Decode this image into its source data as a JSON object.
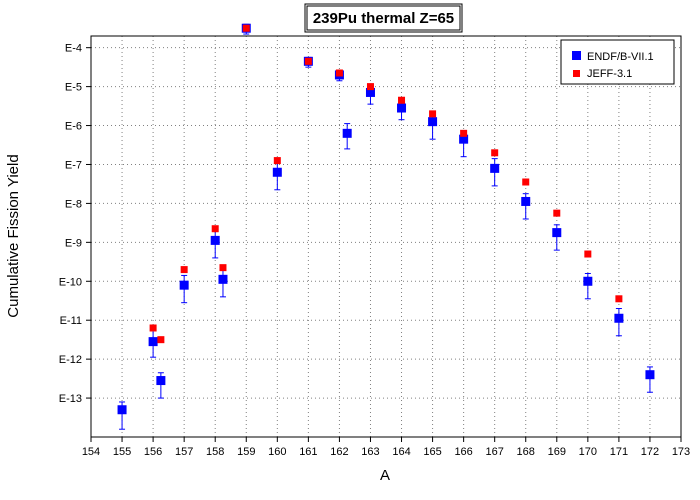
{
  "chart_data": {
    "type": "scatter",
    "title": "239Pu thermal Z=65",
    "xlabel": "A",
    "ylabel": "Cumulative Fission Yield",
    "x_ticks": [
      "154",
      "155",
      "156",
      "157",
      "158",
      "159",
      "160",
      "161",
      "162",
      "163",
      "164",
      "165",
      "166",
      "167",
      "168",
      "169",
      "170",
      "171",
      "172",
      "173"
    ],
    "xlim": [
      154,
      173
    ],
    "y_scale": "log",
    "ylim_log10": [
      -14,
      -3.7
    ],
    "y_ticks": [
      {
        "label": "E-4",
        "exp": -4
      },
      {
        "label": "E-5",
        "exp": -5
      },
      {
        "label": "E-6",
        "exp": -6
      },
      {
        "label": "E-7",
        "exp": -7
      },
      {
        "label": "E-8",
        "exp": -8
      },
      {
        "label": "E-9",
        "exp": -9
      },
      {
        "label": "E-10",
        "exp": -10
      },
      {
        "label": "E-11",
        "exp": -11
      },
      {
        "label": "E-12",
        "exp": -12
      },
      {
        "label": "E-13",
        "exp": -13
      }
    ],
    "grid": true,
    "legend_position": "top-right",
    "series": [
      {
        "name": "ENDF/B-VII.1",
        "color": "#0000ff",
        "marker": "square-large",
        "points": [
          {
            "x": 155,
            "log10y": -13.3,
            "err_lo": 0.5,
            "err_hi": 0.2
          },
          {
            "x": 156,
            "log10y": -11.55,
            "err_lo": 0.4,
            "err_hi": 0.3
          },
          {
            "x": 156.25,
            "log10y": -12.55,
            "err_lo": 0.45,
            "err_hi": 0.2
          },
          {
            "x": 157,
            "log10y": -10.1,
            "err_lo": 0.45,
            "err_hi": 0.25
          },
          {
            "x": 158,
            "log10y": -8.95,
            "err_lo": 0.45,
            "err_hi": 0.25
          },
          {
            "x": 158.25,
            "log10y": -9.95,
            "err_lo": 0.45,
            "err_hi": 0.3
          },
          {
            "x": 159,
            "log10y": -3.5,
            "err_lo": 0.15,
            "err_hi": 0.1
          },
          {
            "x": 160,
            "log10y": -7.2,
            "err_lo": 0.45,
            "err_hi": 0.25
          },
          {
            "x": 161,
            "log10y": -4.35,
            "err_lo": 0.15,
            "err_hi": 0.1
          },
          {
            "x": 162,
            "log10y": -4.7,
            "err_lo": 0.15,
            "err_hi": 0.1
          },
          {
            "x": 162.25,
            "log10y": -6.2,
            "err_lo": 0.4,
            "err_hi": 0.25
          },
          {
            "x": 163,
            "log10y": -5.15,
            "err_lo": 0.3,
            "err_hi": 0.15
          },
          {
            "x": 164,
            "log10y": -5.55,
            "err_lo": 0.3,
            "err_hi": 0.15
          },
          {
            "x": 165,
            "log10y": -5.9,
            "err_lo": 0.45,
            "err_hi": 0.25
          },
          {
            "x": 166,
            "log10y": -6.35,
            "err_lo": 0.45,
            "err_hi": 0.2
          },
          {
            "x": 167,
            "log10y": -7.1,
            "err_lo": 0.45,
            "err_hi": 0.25
          },
          {
            "x": 168,
            "log10y": -7.95,
            "err_lo": 0.45,
            "err_hi": 0.2
          },
          {
            "x": 169,
            "log10y": -8.75,
            "err_lo": 0.45,
            "err_hi": 0.2
          },
          {
            "x": 170,
            "log10y": -10.0,
            "err_lo": 0.45,
            "err_hi": 0.2
          },
          {
            "x": 171,
            "log10y": -10.95,
            "err_lo": 0.45,
            "err_hi": 0.25
          },
          {
            "x": 172,
            "log10y": -12.4,
            "err_lo": 0.45,
            "err_hi": 0.2
          }
        ]
      },
      {
        "name": "JEFF-3.1",
        "color": "#ff0000",
        "marker": "square-small",
        "points": [
          {
            "x": 156,
            "log10y": -11.2
          },
          {
            "x": 156.25,
            "log10y": -11.5
          },
          {
            "x": 157,
            "log10y": -9.7
          },
          {
            "x": 158,
            "log10y": -8.65
          },
          {
            "x": 158.25,
            "log10y": -9.65
          },
          {
            "x": 159,
            "log10y": -3.5
          },
          {
            "x": 160,
            "log10y": -6.9
          },
          {
            "x": 161,
            "log10y": -4.35
          },
          {
            "x": 162,
            "log10y": -4.65
          },
          {
            "x": 163,
            "log10y": -5.0
          },
          {
            "x": 164,
            "log10y": -5.35
          },
          {
            "x": 165,
            "log10y": -5.7
          },
          {
            "x": 166,
            "log10y": -6.2
          },
          {
            "x": 167,
            "log10y": -6.7
          },
          {
            "x": 168,
            "log10y": -7.45
          },
          {
            "x": 169,
            "log10y": -8.25
          },
          {
            "x": 170,
            "log10y": -9.3
          },
          {
            "x": 171,
            "log10y": -10.45
          }
        ]
      }
    ]
  }
}
